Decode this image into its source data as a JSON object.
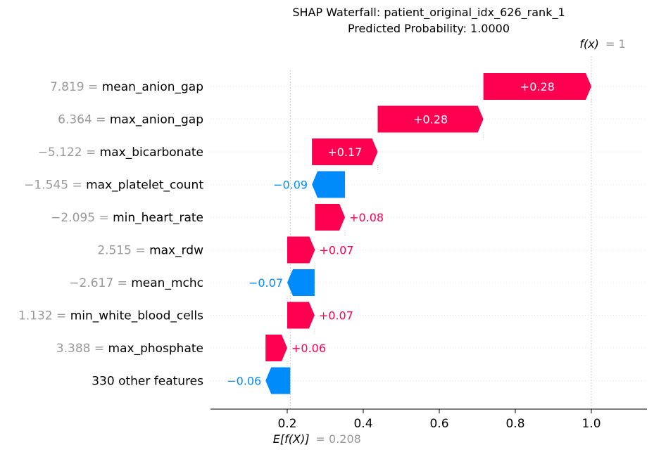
{
  "chart_data": {
    "type": "waterfall",
    "title_line1": "SHAP Waterfall: patient_original_idx_626_rank_1",
    "title_line2": "Predicted Probability: 1.0000",
    "base_value": 0.208,
    "base_label_expr": "E[f(X)]",
    "base_label_value": "= 0.208",
    "final_value": 1.0,
    "final_label_expr": "f(x)",
    "final_label_value": "= 1",
    "xlim": [
      0.02,
      1.14
    ],
    "xticks": [
      0.2,
      0.4,
      0.6,
      0.8,
      1.0
    ],
    "xtick_labels": [
      "0.2",
      "0.4",
      "0.6",
      "0.8",
      "1.0"
    ],
    "features": [
      {
        "value_text": "7.819",
        "name": "mean_anion_gap",
        "shap": 0.28,
        "start": 0.716,
        "end": 1.0,
        "label": "+0.28"
      },
      {
        "value_text": "6.364",
        "name": "max_anion_gap",
        "shap": 0.28,
        "start": 0.438,
        "end": 0.716,
        "label": "+0.28"
      },
      {
        "value_text": "−5.122",
        "name": "max_bicarbonate",
        "shap": 0.17,
        "start": 0.265,
        "end": 0.438,
        "label": "+0.17"
      },
      {
        "value_text": "−1.545",
        "name": "max_platelet_count",
        "shap": -0.09,
        "start": 0.352,
        "end": 0.265,
        "label": "−0.09"
      },
      {
        "value_text": "−2.095",
        "name": "min_heart_rate",
        "shap": 0.08,
        "start": 0.273,
        "end": 0.352,
        "label": "+0.08"
      },
      {
        "value_text": "2.515",
        "name": "max_rdw",
        "shap": 0.07,
        "start": 0.2,
        "end": 0.273,
        "label": "+0.07"
      },
      {
        "value_text": "−2.617",
        "name": "mean_mchc",
        "shap": -0.07,
        "start": 0.272,
        "end": 0.2,
        "label": "−0.07"
      },
      {
        "value_text": "1.132",
        "name": "min_white_blood_cells",
        "shap": 0.07,
        "start": 0.2,
        "end": 0.272,
        "label": "+0.07"
      },
      {
        "value_text": "3.388",
        "name": "max_phosphate",
        "shap": 0.06,
        "start": 0.143,
        "end": 0.2,
        "label": "+0.06"
      },
      {
        "value_text": "",
        "name": "330 other features",
        "shap": -0.06,
        "start": 0.208,
        "end": 0.143,
        "label": "−0.06"
      }
    ],
    "colors": {
      "positive": "#ff0051",
      "negative": "#008bfb",
      "value_gray": "#999999",
      "grid": "#cccccc"
    }
  }
}
